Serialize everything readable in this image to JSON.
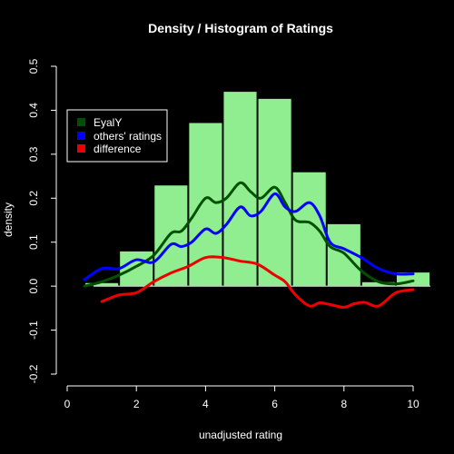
{
  "chart_data": {
    "type": "bar",
    "title": "Density / Histogram of Ratings",
    "xlabel": "unadjusted rating",
    "ylabel": "density",
    "xlim": [
      0,
      10
    ],
    "ylim": [
      -0.2,
      0.5
    ],
    "xticks": [
      "0",
      "2",
      "4",
      "6",
      "8",
      "10"
    ],
    "yticks": [
      "-0.2",
      "-0.1",
      "0.0",
      "0.1",
      "0.2",
      "0.3",
      "0.4",
      "0.5"
    ],
    "grid": false,
    "legend_position": "top-left",
    "histogram": {
      "bin_edges": [
        0.5,
        1.5,
        2.5,
        3.5,
        4.5,
        5.5,
        6.5,
        7.5,
        8.5,
        9.5,
        10.5
      ],
      "values": [
        0.008,
        0.08,
        0.23,
        0.372,
        0.443,
        0.427,
        0.26,
        0.142,
        0.01,
        0.032
      ],
      "color": "#90ee90"
    },
    "series": [
      {
        "name": "EyalY",
        "color": "#005000",
        "x": [
          0.5,
          1.0,
          1.5,
          2.0,
          2.5,
          3.0,
          3.3,
          3.6,
          4.0,
          4.3,
          4.6,
          5.0,
          5.3,
          5.6,
          6.0,
          6.3,
          6.6,
          7.0,
          7.3,
          7.6,
          8.0,
          8.5,
          9.0,
          9.5,
          10.0
        ],
        "y": [
          0.0,
          0.01,
          0.025,
          0.045,
          0.07,
          0.12,
          0.125,
          0.155,
          0.2,
          0.19,
          0.2,
          0.235,
          0.215,
          0.2,
          0.225,
          0.19,
          0.15,
          0.145,
          0.125,
          0.09,
          0.075,
          0.035,
          0.01,
          0.005,
          0.012
        ]
      },
      {
        "name": "others' ratings",
        "color": "#0000ff",
        "x": [
          0.5,
          1.0,
          1.5,
          2.0,
          2.5,
          3.0,
          3.3,
          3.6,
          4.0,
          4.3,
          4.6,
          5.0,
          5.3,
          5.6,
          6.0,
          6.3,
          6.6,
          7.0,
          7.3,
          7.6,
          8.0,
          8.5,
          9.0,
          9.5,
          10.0
        ],
        "y": [
          0.015,
          0.04,
          0.04,
          0.06,
          0.055,
          0.095,
          0.09,
          0.1,
          0.13,
          0.12,
          0.14,
          0.18,
          0.16,
          0.17,
          0.21,
          0.18,
          0.17,
          0.19,
          0.16,
          0.1,
          0.085,
          0.065,
          0.04,
          0.028,
          0.028
        ]
      },
      {
        "name": "difference",
        "color": "#ee0000",
        "x": [
          1.0,
          1.5,
          2.0,
          2.5,
          3.0,
          3.5,
          4.0,
          4.5,
          5.0,
          5.5,
          6.0,
          6.3,
          6.6,
          7.0,
          7.3,
          7.6,
          8.0,
          8.3,
          8.6,
          9.0,
          9.5,
          10.0
        ],
        "y": [
          -0.035,
          -0.02,
          -0.015,
          0.01,
          0.03,
          0.045,
          0.065,
          0.065,
          0.057,
          0.05,
          0.025,
          0.01,
          -0.02,
          -0.045,
          -0.038,
          -0.042,
          -0.048,
          -0.04,
          -0.037,
          -0.045,
          -0.015,
          -0.008
        ]
      }
    ]
  }
}
